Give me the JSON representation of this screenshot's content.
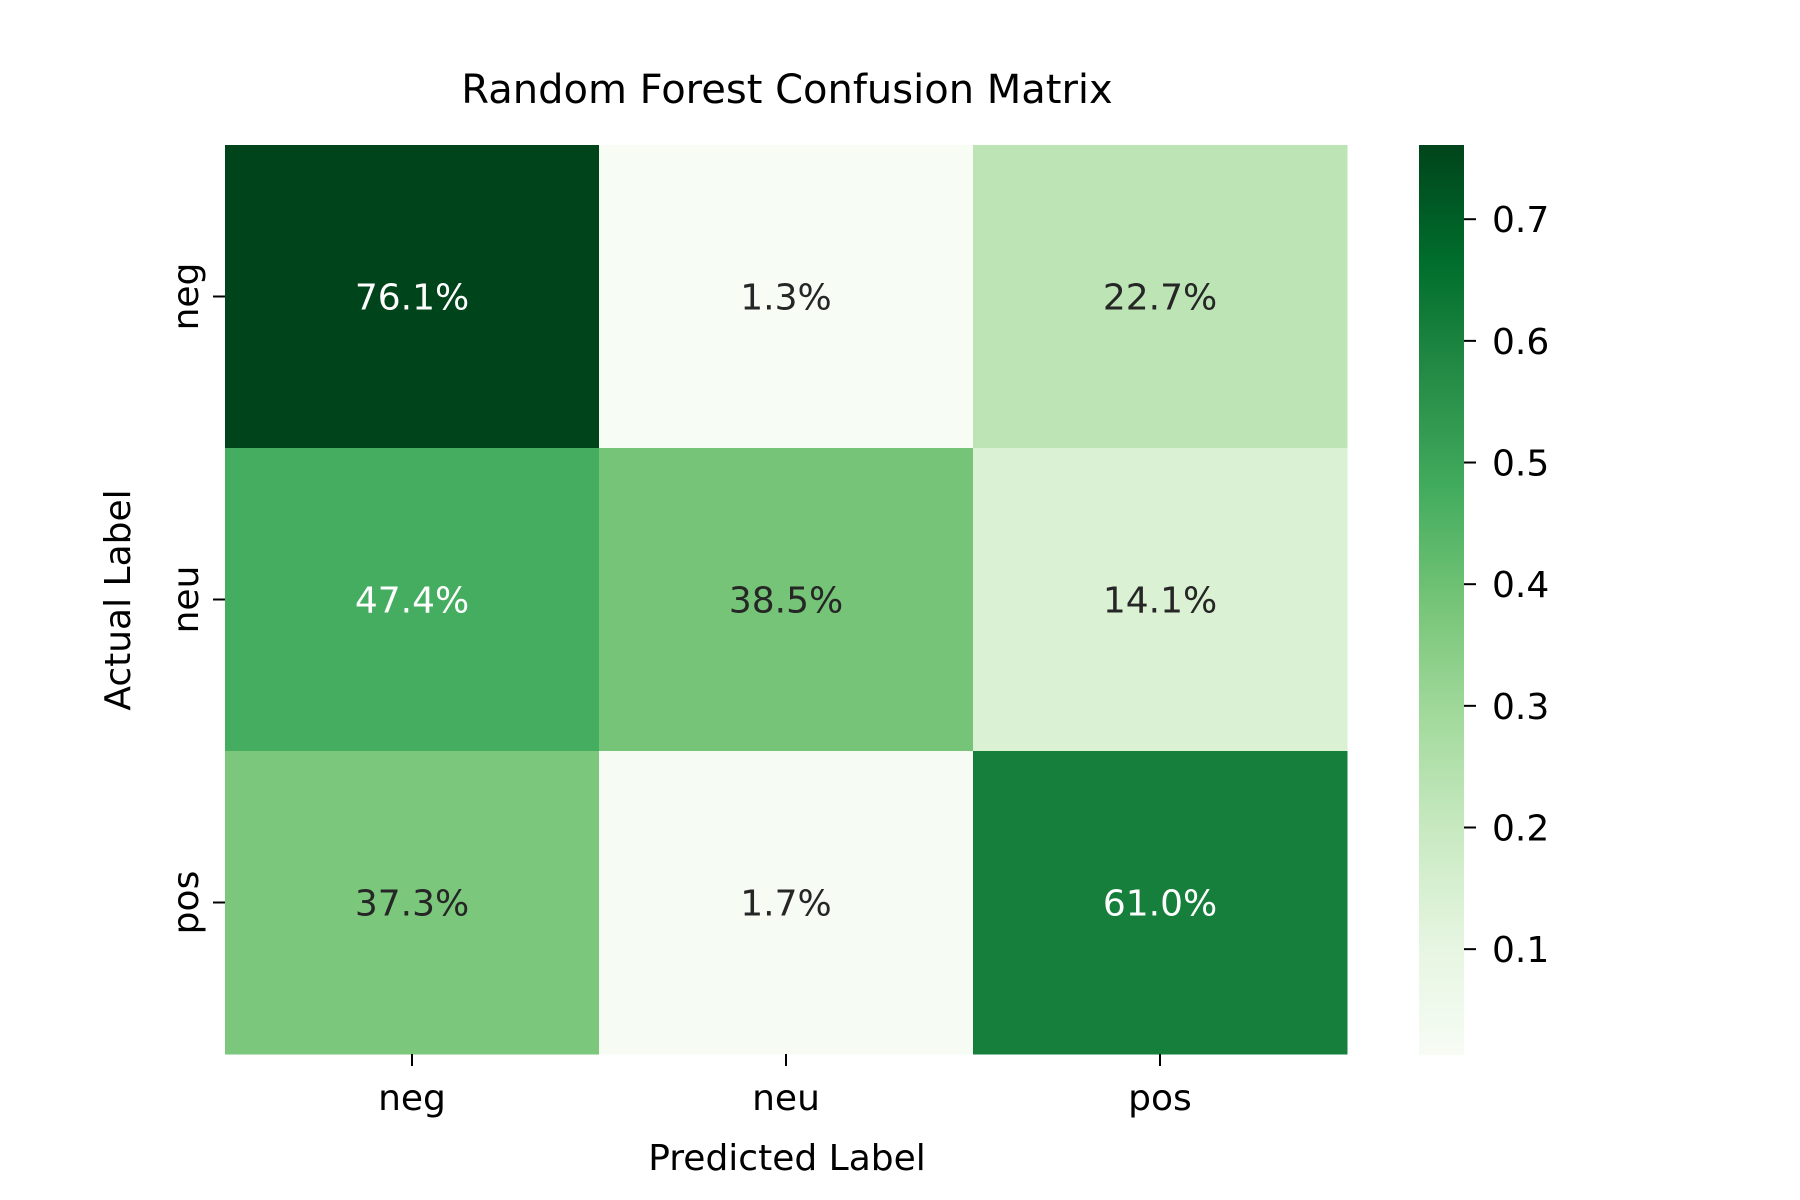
{
  "chart_data": {
    "type": "heatmap",
    "title": "Random Forest Confusion Matrix",
    "xlabel": "Predicted Label",
    "ylabel": "Actual Label",
    "x_categories": [
      "neg",
      "neu",
      "pos"
    ],
    "y_categories": [
      "neg",
      "neu",
      "pos"
    ],
    "values": [
      [
        0.761,
        0.013,
        0.227
      ],
      [
        0.474,
        0.385,
        0.141
      ],
      [
        0.373,
        0.017,
        0.61
      ]
    ],
    "cell_labels": [
      [
        "76.1%",
        "1.3%",
        "22.7%"
      ],
      [
        "47.4%",
        "38.5%",
        "14.1%"
      ],
      [
        "37.3%",
        "1.7%",
        "61.0%"
      ]
    ],
    "colormap": "Greens",
    "colorbar": {
      "range": [
        0.013,
        0.761
      ],
      "ticks": [
        0.1,
        0.2,
        0.3,
        0.4,
        0.5,
        0.6,
        0.7
      ],
      "tick_labels": [
        "0.1",
        "0.2",
        "0.3",
        "0.4",
        "0.5",
        "0.6",
        "0.7"
      ]
    },
    "colors": {
      "light_text": "#ffffff",
      "dark_text": "#262626"
    }
  }
}
